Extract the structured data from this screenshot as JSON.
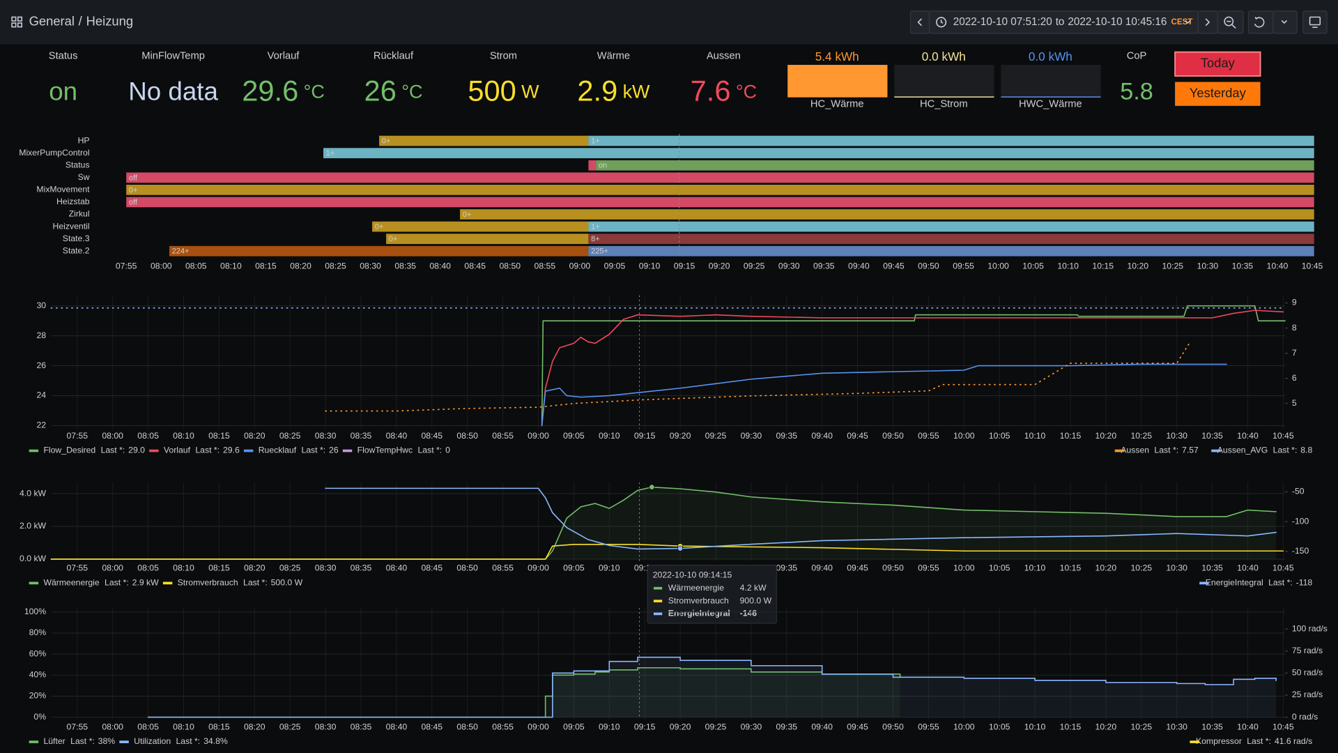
{
  "header": {
    "breadcrumb": [
      "General",
      "Heizung"
    ],
    "separator": "/",
    "time_from": "2022-10-10 07:51:20",
    "time_sep": "to",
    "time_to": "2022-10-10 10:45:16",
    "timezone": "CEST"
  },
  "stats": [
    {
      "title": "Status",
      "value": "on",
      "color": "#73bf69"
    },
    {
      "title": "MinFlowTemp",
      "value": "No data",
      "color": "#c6d7ef"
    },
    {
      "title": "Vorlauf",
      "value": 29.6,
      "unit": "°C",
      "color": "#73bf69"
    },
    {
      "title": "Rücklauf",
      "value": 26,
      "unit": "°C",
      "color": "#73bf69"
    },
    {
      "title": "Strom",
      "value": 500,
      "unit": "W",
      "color": "#fade2a"
    },
    {
      "title": "Wärme",
      "value": 2.9,
      "unit": "kW",
      "color": "#fade2a"
    },
    {
      "title": "Aussen",
      "value": 7.6,
      "unit": "°C",
      "color": "#f2495c"
    }
  ],
  "gauges": [
    {
      "title": "HC_Wärme",
      "value": 5.4,
      "unit": "kWh",
      "color": "#ff9830"
    },
    {
      "title": "HC_Strom",
      "value": 0.0,
      "value_label": "0.0",
      "unit": "kWh",
      "color": "#f2e49b"
    },
    {
      "title": "HWC_Wärme",
      "value": 0.0,
      "value_label": "0.0",
      "unit": "kWh",
      "color": "#5794f2"
    }
  ],
  "cop": {
    "title": "CoP",
    "value": 5.8,
    "color": "#73bf69"
  },
  "buttons": [
    {
      "label": "Today",
      "color": "#e02f44"
    },
    {
      "label": "Yesterday",
      "color": "#ff780a"
    }
  ],
  "time_ticks": [
    "07:55",
    "08:00",
    "08:05",
    "08:10",
    "08:15",
    "08:20",
    "08:25",
    "08:30",
    "08:35",
    "08:40",
    "08:45",
    "08:50",
    "08:55",
    "09:00",
    "09:05",
    "09:10",
    "09:15",
    "09:20",
    "09:25",
    "09:30",
    "09:35",
    "09:40",
    "09:45",
    "09:50",
    "09:55",
    "10:00",
    "10:05",
    "10:10",
    "10:15",
    "10:20",
    "10:25",
    "10:30",
    "10:35",
    "10:40",
    "10:45"
  ],
  "timeline": {
    "rows": [
      {
        "name": "HP",
        "segments": [
          {
            "start": "08:31:15",
            "label": "0+",
            "color": "#b8901f"
          },
          {
            "start": "09:01:15",
            "label": "1+",
            "color": "#6cb4c4"
          }
        ]
      },
      {
        "name": "MixerPumpControl",
        "segments": [
          {
            "start": "08:23:15",
            "label": "1+",
            "color": "#6cb4c4"
          }
        ]
      },
      {
        "name": "Status",
        "segments": [
          {
            "start": "09:01:15",
            "color": "#d44a66"
          },
          {
            "start": "09:02:20",
            "label": "on",
            "color": "#6f9f5a"
          }
        ]
      },
      {
        "name": "Sw",
        "segments": [
          {
            "start": "07:55",
            "label": "off",
            "color": "#d44a66"
          }
        ]
      },
      {
        "name": "MixMovement",
        "segments": [
          {
            "start": "07:55",
            "label": "0+",
            "color": "#b8901f"
          }
        ]
      },
      {
        "name": "Heizstab",
        "segments": [
          {
            "start": "07:55",
            "label": "off",
            "color": "#d44a66"
          }
        ]
      },
      {
        "name": "Zirkul",
        "segments": [
          {
            "start": "08:42:50",
            "label": "0+",
            "color": "#b8901f"
          }
        ]
      },
      {
        "name": "Heizventil",
        "segments": [
          {
            "start": "08:30:15",
            "label": "0+",
            "color": "#b8901f"
          },
          {
            "start": "09:01:15",
            "label": "1+",
            "color": "#6cb4c4"
          }
        ]
      },
      {
        "name": "State.3",
        "segments": [
          {
            "start": "08:32:15",
            "label": "0+",
            "color": "#b8901f"
          },
          {
            "start": "09:01:15",
            "label": "8+",
            "color": "#8a3a3a"
          }
        ]
      },
      {
        "name": "State.2",
        "segments": [
          {
            "start": "08:01:10",
            "label": "224+",
            "color": "#a8500f"
          },
          {
            "start": "09:01:15",
            "label": "225+",
            "color": "#5c80b8"
          }
        ]
      }
    ]
  },
  "legend_stat": "Last *:",
  "panels": [
    {
      "ylim": [
        21.8,
        30.7
      ],
      "yticks": [
        22,
        24,
        26,
        28,
        30
      ],
      "y2lim": [
        4,
        9.3
      ],
      "y2ticks": [
        5,
        6,
        7,
        8,
        9
      ],
      "series": [
        {
          "name": "Flow_Desired",
          "color": "#73bf69",
          "last": "29.0",
          "x": [
            "09:00:30",
            "09:00:40",
            "09:53",
            "09:53:10",
            "10:16",
            "10:16:10",
            "10:31",
            "10:31:30",
            "10:41",
            "10:41:30",
            "10:45:16"
          ],
          "values": [
            22,
            29,
            29,
            29.4,
            29.4,
            29.3,
            29.3,
            30,
            30,
            29,
            29
          ]
        },
        {
          "name": "Vorlauf",
          "color": "#f2495c",
          "last": "29.6",
          "x": [
            "09:00:30",
            "09:01",
            "09:02",
            "09:03",
            "09:05",
            "09:06",
            "09:07",
            "09:08",
            "09:10",
            "09:12",
            "09:14",
            "09:20",
            "09:25",
            "09:30",
            "09:40",
            "09:50",
            "10:00",
            "10:20",
            "10:35",
            "10:38",
            "10:41",
            "10:45"
          ],
          "values": [
            22,
            24.5,
            26.3,
            27.2,
            27.5,
            27.9,
            27.6,
            27.5,
            28.1,
            29.1,
            29.4,
            29.3,
            29.4,
            29.3,
            29.2,
            29.2,
            29.2,
            29.2,
            29.2,
            29.5,
            29.7,
            29.6
          ]
        },
        {
          "name": "Ruecklauf",
          "color": "#5794f2",
          "last": "26",
          "x": [
            "09:00:30",
            "09:01",
            "09:03",
            "09:04",
            "09:06",
            "09:10",
            "09:14",
            "09:20",
            "09:25",
            "09:30",
            "09:35",
            "09:40",
            "09:50",
            "10:00",
            "10:02",
            "10:15",
            "10:25",
            "10:37"
          ],
          "values": [
            22,
            24.3,
            24.5,
            24,
            23.9,
            24,
            24.2,
            24.5,
            24.8,
            25.1,
            25.3,
            25.5,
            25.6,
            25.7,
            26,
            26,
            26.1,
            26.1
          ]
        },
        {
          "name": "FlowTempHwc",
          "color": "#ca95e5",
          "last": "0",
          "x": [],
          "values": []
        },
        {
          "name": "Aussen",
          "color": "#ff9830",
          "axis": "y2",
          "style": "dotted",
          "last": "7.57",
          "x": [
            "08:30",
            "08:40",
            "08:50",
            "09:00",
            "09:05",
            "09:15",
            "09:30",
            "09:45",
            "09:55",
            "09:57",
            "10:10",
            "10:15",
            "10:30",
            "10:32"
          ],
          "values": [
            4.7,
            4.7,
            4.8,
            4.85,
            5,
            5.15,
            5.3,
            5.4,
            5.5,
            5.75,
            5.75,
            6.6,
            6.6,
            7.5
          ]
        },
        {
          "name": "Aussen_AVG",
          "color": "#8ab8ff",
          "axis": "y2",
          "style": "dotted",
          "last": "8.8",
          "x": [
            "07:51:20",
            "10:45:16"
          ],
          "values": [
            8.8,
            8.8
          ]
        }
      ]
    },
    {
      "ylim": [
        -107,
        4690
      ],
      "yticks": [
        {
          "value": 0,
          "label": "0.0 kW"
        },
        {
          "value": 2000,
          "label": "2.0 kW"
        },
        {
          "value": 4000,
          "label": "4.0 kW"
        }
      ],
      "y2lim": [
        -166,
        -34
      ],
      "y2ticks": [
        -150,
        -100,
        -50
      ],
      "series": [
        {
          "name": "Wärmeenergie",
          "color": "#73bf69",
          "area": true,
          "last": "2.9 kW",
          "x": [
            "07:51:20",
            "09:01",
            "09:02",
            "09:04",
            "09:06",
            "09:08",
            "09:10",
            "09:12",
            "09:14",
            "09:16",
            "09:20",
            "09:25",
            "09:30",
            "09:40",
            "09:50",
            "10:00",
            "10:10",
            "10:20",
            "10:30",
            "10:37",
            "10:40",
            "10:44"
          ],
          "values": [
            0,
            0,
            500,
            2500,
            3200,
            3400,
            3100,
            3600,
            4200,
            4400,
            4300,
            4100,
            3800,
            3500,
            3300,
            3000,
            2900,
            2800,
            2600,
            2600,
            3000,
            2900
          ]
        },
        {
          "name": "Stromverbrauch",
          "color": "#fade2a",
          "last": "500.0 W",
          "x": [
            "07:51:20",
            "09:01",
            "09:02",
            "09:05",
            "09:14",
            "09:20",
            "09:40",
            "10:00",
            "10:45"
          ],
          "values": [
            0,
            0,
            800,
            900,
            900,
            800,
            700,
            500,
            500
          ]
        },
        {
          "name": "EnergieIntegral",
          "color": "#8ab8ff",
          "axis": "y2",
          "last": "-118",
          "x": [
            "08:30",
            "09:00",
            "09:01",
            "09:02",
            "09:04",
            "09:07",
            "09:10",
            "09:14",
            "09:20",
            "09:30",
            "09:40",
            "10:00",
            "10:20",
            "10:30",
            "10:40",
            "10:44"
          ],
          "values": [
            -44,
            -44,
            -60,
            -85,
            -110,
            -130,
            -140,
            -146,
            -145,
            -138,
            -132,
            -127,
            -124,
            -120,
            -124,
            -118
          ]
        }
      ],
      "tooltip": {
        "time": "2022-10-10 09:14:15",
        "rows": [
          {
            "name": "Wärmeenergie",
            "value": "4.2 kW",
            "color": "#73bf69"
          },
          {
            "name": "Stromverbrauch",
            "value": "900.0 W",
            "color": "#fade2a"
          },
          {
            "name": "EnergieIntegral",
            "value": "-146",
            "color": "#8ab8ff",
            "active": true
          }
        ]
      }
    },
    {
      "ylim": [
        -1.6,
        104
      ],
      "yticks": [
        {
          "value": 0,
          "label": "0%"
        },
        {
          "value": 20,
          "label": "20%"
        },
        {
          "value": 40,
          "label": "40%"
        },
        {
          "value": 60,
          "label": "60%"
        },
        {
          "value": 80,
          "label": "80%"
        },
        {
          "value": 100,
          "label": "100%"
        }
      ],
      "y2lim": [
        -1.9,
        124
      ],
      "y2ticks": [
        {
          "value": 0,
          "label": "0 rad/s"
        },
        {
          "value": 25,
          "label": "25 rad/s"
        },
        {
          "value": 50,
          "label": "50 rad/s"
        },
        {
          "value": 75,
          "label": "75 rad/s"
        },
        {
          "value": 100,
          "label": "100 rad/s"
        }
      ],
      "series": [
        {
          "name": "Lüfter",
          "color": "#73bf69",
          "step": true,
          "area": true,
          "last": "38%",
          "x": [
            "08:05",
            "09:01",
            "09:02",
            "09:05",
            "09:08",
            "09:10",
            "09:14",
            "09:20",
            "09:30",
            "09:40",
            "09:51"
          ],
          "values": [
            0,
            20,
            40,
            41,
            43,
            45,
            47,
            46,
            43,
            41,
            38
          ]
        },
        {
          "name": "Utilization",
          "color": "#8ab8ff",
          "step": true,
          "area": true,
          "last": "34.8%",
          "x": [
            "08:05",
            "09:02",
            "09:05",
            "09:10",
            "09:14",
            "09:20",
            "09:30",
            "09:40",
            "09:50",
            "10:00",
            "10:10",
            "10:20",
            "10:30",
            "10:34",
            "10:38",
            "10:41",
            "10:44"
          ],
          "values": [
            0,
            42,
            44,
            53,
            57,
            54,
            49,
            41,
            38,
            37,
            35,
            33,
            32,
            31,
            36,
            37,
            34.8
          ]
        },
        {
          "name": "Kompressor",
          "color": "#fade2a",
          "axis": "y2",
          "last": "41.6 rad/s",
          "x": [],
          "values": []
        }
      ]
    }
  ]
}
